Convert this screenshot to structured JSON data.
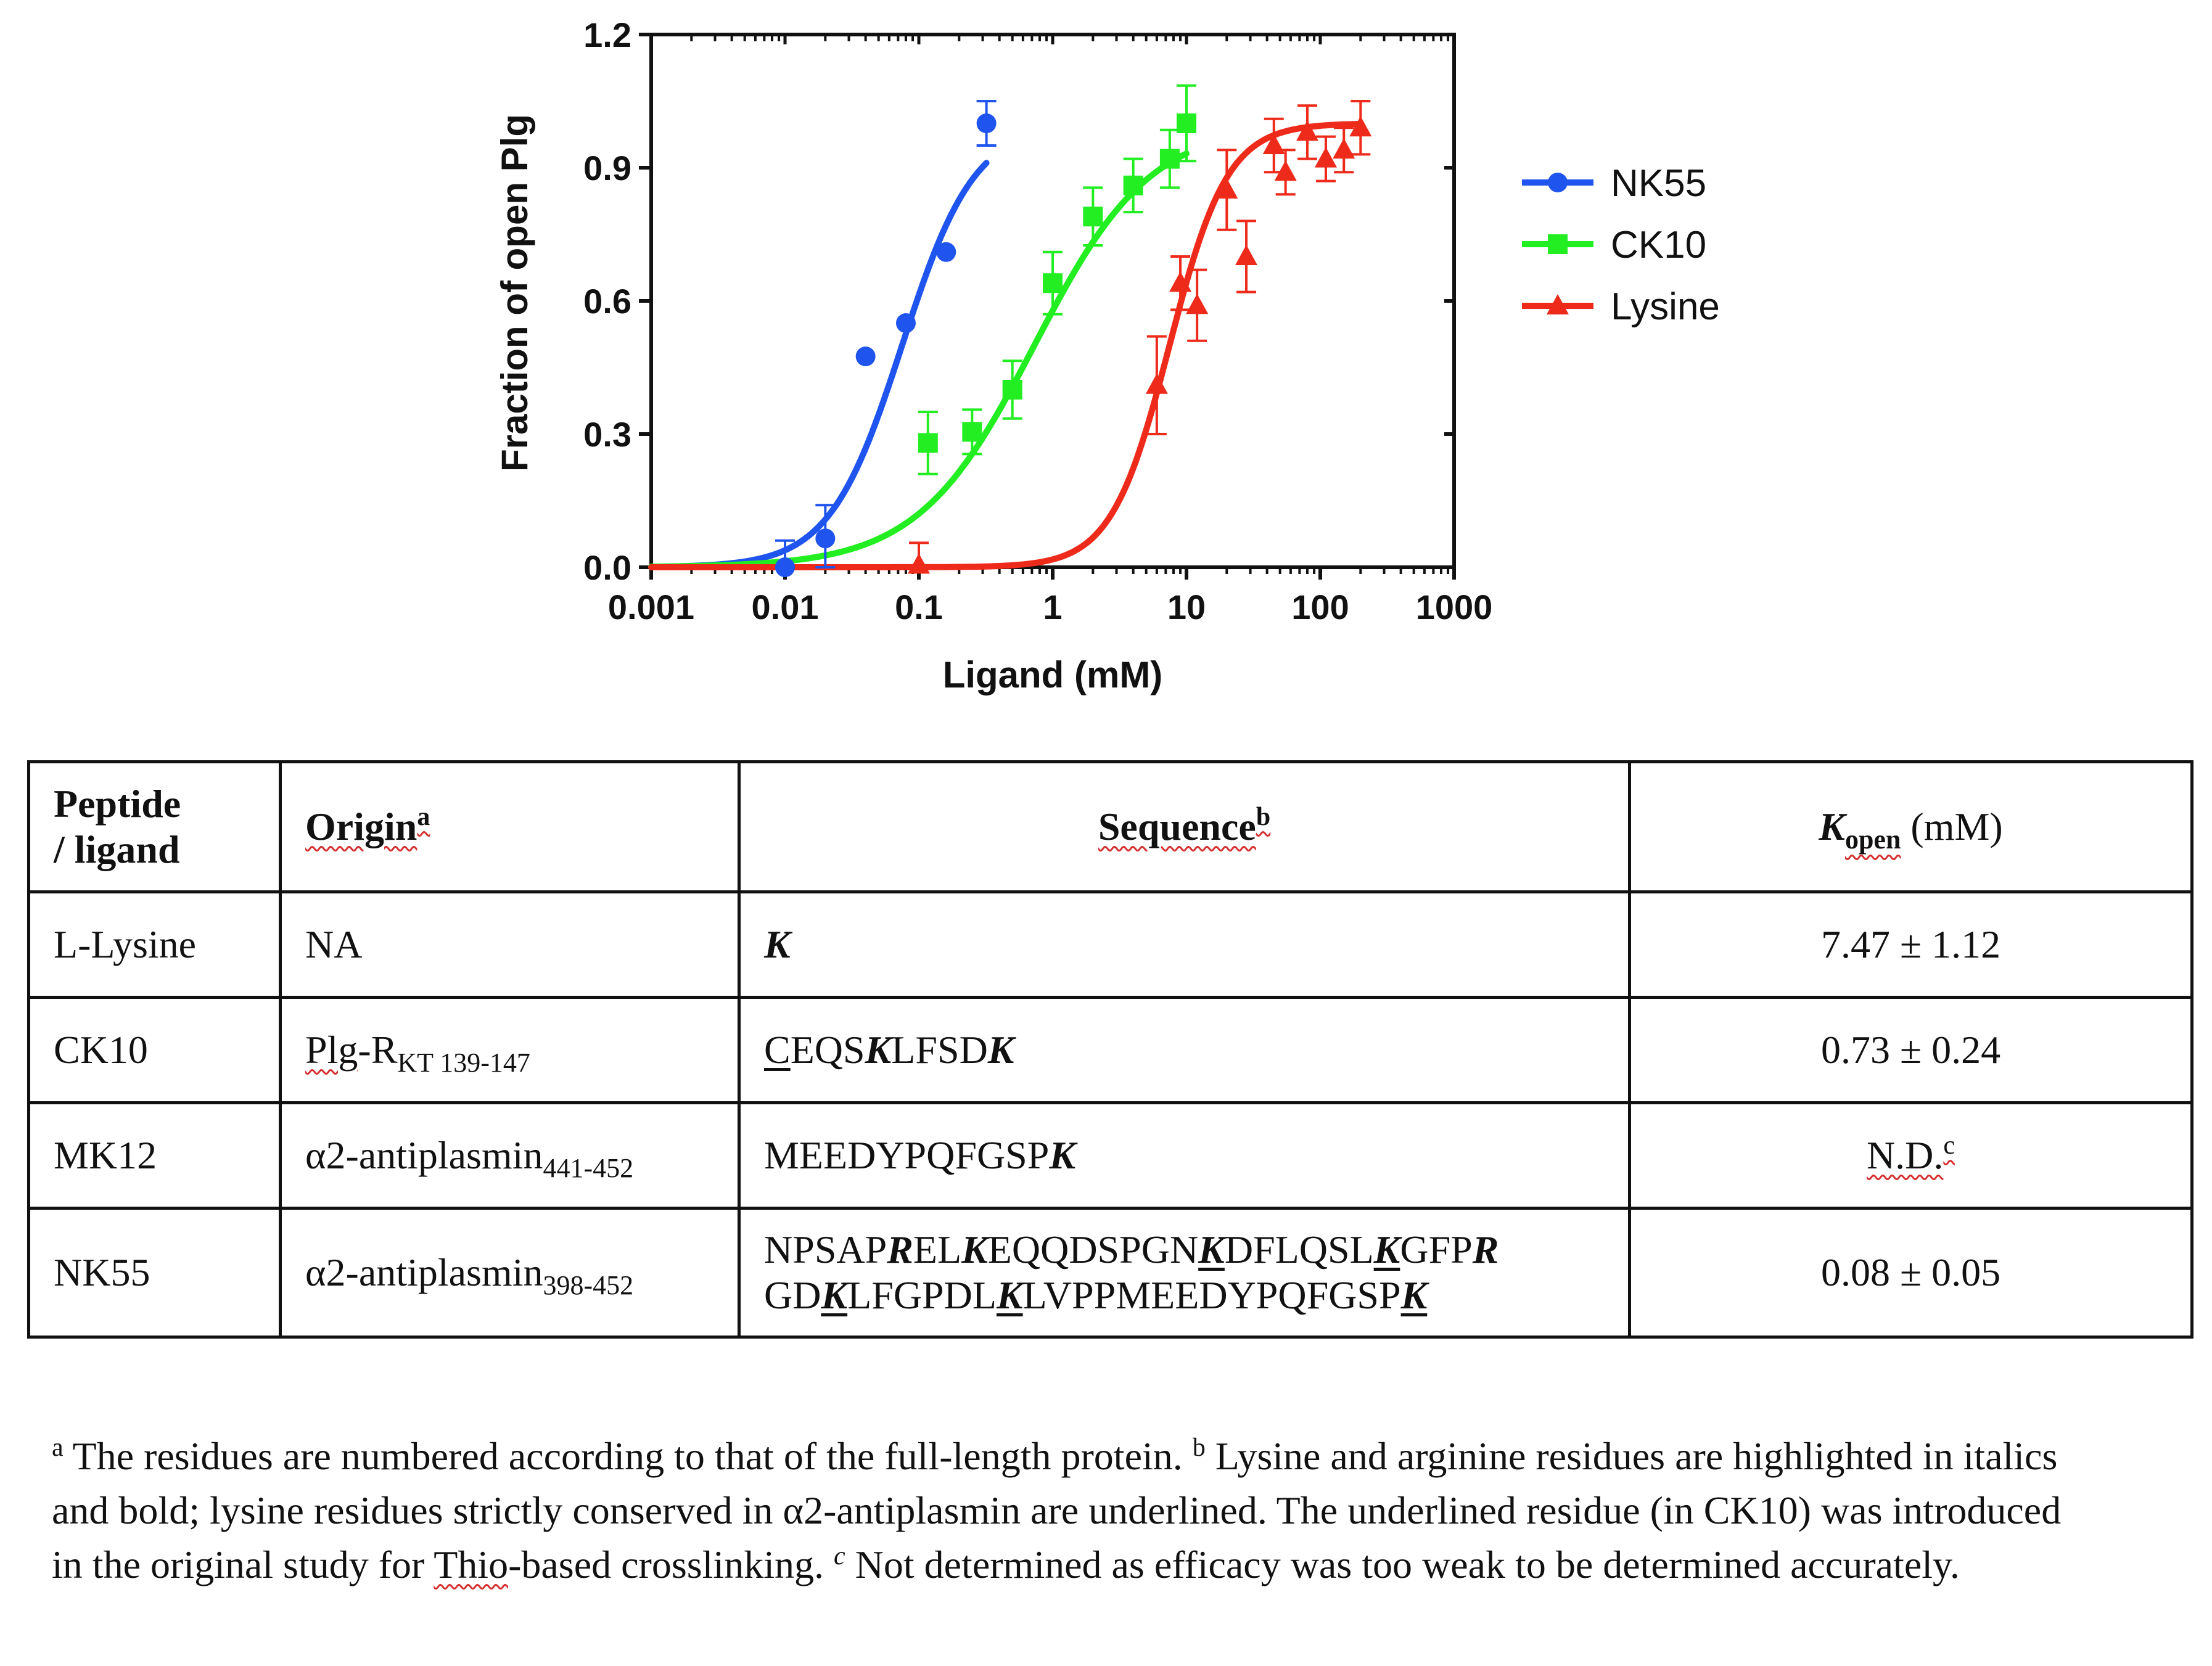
{
  "chart_data": {
    "type": "scatter",
    "xlabel": "Ligand (mM)",
    "ylabel": "Fraction of open Plg",
    "x_scale": "log",
    "xlim": [
      0.001,
      1000
    ],
    "ylim": [
      0,
      1.2
    ],
    "x_ticks": [
      "0.001",
      "0.01",
      "0.1",
      "1",
      "10",
      "100",
      "1000"
    ],
    "y_ticks": [
      "0.0",
      "0.3",
      "0.6",
      "0.9",
      "1.2"
    ],
    "legend_position": "right",
    "series": [
      {
        "name": "NK55",
        "color": "#1f55ee",
        "marker": "circle",
        "points": [
          {
            "x": 0.01,
            "y": 0.0,
            "err": 0.06
          },
          {
            "x": 0.02,
            "y": 0.065,
            "err": 0.075
          },
          {
            "x": 0.04,
            "y": 0.475,
            "err": 0.0
          },
          {
            "x": 0.08,
            "y": 0.55,
            "err": 0.0
          },
          {
            "x": 0.16,
            "y": 0.71,
            "err": 0.0
          },
          {
            "x": 0.32,
            "y": 1.0,
            "err": 0.05
          }
        ],
        "fit": {
          "ec50": 0.075,
          "hill": 1.6,
          "x_range": [
            0.001,
            0.32
          ]
        }
      },
      {
        "name": "CK10",
        "color": "#22ee22",
        "marker": "square",
        "points": [
          {
            "x": 0.117,
            "y": 0.28,
            "err": 0.07
          },
          {
            "x": 0.25,
            "y": 0.305,
            "err": 0.05
          },
          {
            "x": 0.5,
            "y": 0.4,
            "err": 0.065
          },
          {
            "x": 1.0,
            "y": 0.64,
            "err": 0.07
          },
          {
            "x": 2.0,
            "y": 0.79,
            "err": 0.065
          },
          {
            "x": 4.0,
            "y": 0.86,
            "err": 0.06
          },
          {
            "x": 7.5,
            "y": 0.92,
            "err": 0.065
          },
          {
            "x": 10.0,
            "y": 1.0,
            "err": 0.085
          }
        ],
        "fit": {
          "ec50": 0.73,
          "hill": 1.0,
          "x_range": [
            0.001,
            10
          ]
        }
      },
      {
        "name": "Lysine",
        "color": "#ee2a1a",
        "marker": "triangle",
        "points": [
          {
            "x": 0.1,
            "y": 0.005,
            "err": 0.05
          },
          {
            "x": 6.0,
            "y": 0.41,
            "err": 0.11
          },
          {
            "x": 9.0,
            "y": 0.64,
            "err": 0.06
          },
          {
            "x": 12.0,
            "y": 0.59,
            "err": 0.08
          },
          {
            "x": 20.0,
            "y": 0.85,
            "err": 0.09
          },
          {
            "x": 28.0,
            "y": 0.7,
            "err": 0.08
          },
          {
            "x": 45.0,
            "y": 0.95,
            "err": 0.06
          },
          {
            "x": 55.0,
            "y": 0.89,
            "err": 0.05
          },
          {
            "x": 80.0,
            "y": 0.98,
            "err": 0.06
          },
          {
            "x": 110.0,
            "y": 0.92,
            "err": 0.05
          },
          {
            "x": 150.0,
            "y": 0.94,
            "err": 0.05
          },
          {
            "x": 200.0,
            "y": 0.99,
            "err": 0.06
          }
        ],
        "fit": {
          "ec50": 7.47,
          "hill": 2.0,
          "x_range": [
            0.001,
            200
          ]
        }
      }
    ]
  },
  "table": {
    "headers": {
      "col1_line1": "Peptide",
      "col1_line2": "/ ligand",
      "col2": "Origin",
      "col2_sup": "a",
      "col3": "Sequence",
      "col3_sup": "b",
      "col4_k": "K",
      "col4_sub": "open",
      "col4_unit": " (mM)"
    },
    "rows": [
      {
        "peptide": "L-Lysine",
        "origin": "NA",
        "origin_sub": "",
        "kopen": "7.47 ± 1.12",
        "kopen_sup": ""
      },
      {
        "peptide": "CK10",
        "origin": "Plg-R",
        "origin_sub": "KT 139-147",
        "kopen": "0.73 ± 0.24",
        "kopen_sup": ""
      },
      {
        "peptide": "MK12",
        "origin": "α2-antiplasmin",
        "origin_sub": "441-452",
        "kopen": "N.D.",
        "kopen_sup": "c"
      },
      {
        "peptide": "NK55",
        "origin": "α2-antiplasmin",
        "origin_sub": "398-452",
        "kopen": "0.08 ± 0.05",
        "kopen_sup": ""
      }
    ],
    "sequences": [
      [
        [
          {
            "t": "K",
            "k": true
          }
        ]
      ],
      [
        [
          {
            "t": "C",
            "u": true
          },
          {
            "t": "EQS"
          },
          {
            "t": "K",
            "k": true
          },
          {
            "t": "LFSD"
          },
          {
            "t": "K",
            "k": true
          }
        ]
      ],
      [
        [
          {
            "t": "MEEDYPQFGSP"
          },
          {
            "t": "K",
            "k": true
          }
        ]
      ],
      [
        [
          {
            "t": "NPSAP"
          },
          {
            "t": "R",
            "k": true
          },
          {
            "t": "EL"
          },
          {
            "t": "K",
            "k": true
          },
          {
            "t": "EQQDSPGN"
          },
          {
            "t": "K",
            "k": true,
            "u": true
          },
          {
            "t": "DFLQSL"
          },
          {
            "t": "K",
            "k": true,
            "u": true
          },
          {
            "t": "GFP"
          },
          {
            "t": "R",
            "k": true
          }
        ],
        [
          {
            "t": "GD"
          },
          {
            "t": "K",
            "k": true,
            "u": true
          },
          {
            "t": "LFGPDL"
          },
          {
            "t": "K",
            "k": true,
            "u": true
          },
          {
            "t": "LVPPMEEDYPQFGSP"
          },
          {
            "t": "K",
            "k": true,
            "u": true
          }
        ]
      ]
    ]
  },
  "footnotes": {
    "a_mark": "a",
    "a_text": " The residues are numbered according to that of the full-length protein. ",
    "b_mark": "b",
    "b_text_1": " Lysine and arginine residues are highlighted in italics and bold; lysine residues strictly conserved in α2-antiplasmin are underlined. The underlined residue (in CK10) was introduced in the original study for ",
    "b_word": "Thio",
    "b_text_2": "-based crosslinking. ",
    "c_mark": "c",
    "c_text": " Not determined as efficacy was too weak to be determined accurately."
  }
}
